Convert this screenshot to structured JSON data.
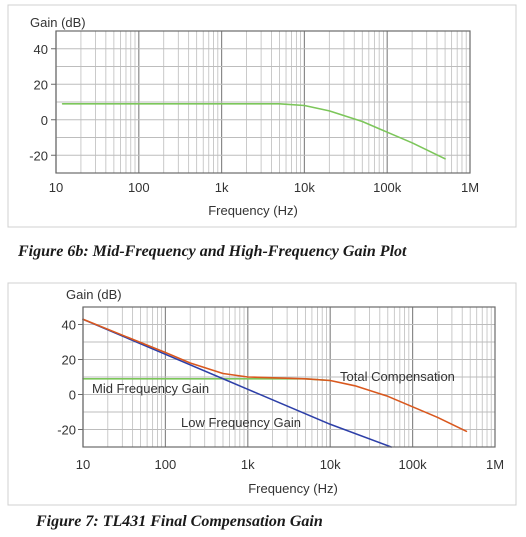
{
  "colors": {
    "green": "#7cc65a",
    "blue": "#2d3fa8",
    "red": "#d9581e",
    "orange": "#e0701c",
    "grid": "#bdbdbd",
    "frame": "#6a6a6a"
  },
  "chart_data": [
    {
      "type": "line",
      "title": "Figure 6b:  Mid-Frequency and High-Frequency Gain Plot",
      "xlabel": "Frequency (Hz)",
      "ylabel": "Gain (dB)",
      "xscale": "log",
      "xlim": [
        10,
        1000000
      ],
      "ylim": [
        -30,
        50
      ],
      "xticks": [
        "10",
        "100",
        "1k",
        "10k",
        "100k",
        "1M"
      ],
      "yticks": [
        "40",
        "20",
        "0",
        "-20"
      ],
      "grid": true,
      "series": [
        {
          "color": "#7cc65a",
          "x": [
            12,
            100,
            1000,
            5000,
            10000,
            20000,
            50000,
            100000,
            200000,
            500000
          ],
          "y": [
            9,
            9,
            9,
            9,
            8,
            5,
            -1,
            -7,
            -13,
            -22
          ]
        }
      ]
    },
    {
      "type": "line",
      "title": "Figure 7:  TL431 Final Compensation Gain",
      "xlabel": "Frequency (Hz)",
      "ylabel": "Gain (dB)",
      "xscale": "log",
      "xlim": [
        10,
        1000000
      ],
      "ylim": [
        -30,
        50
      ],
      "xticks": [
        "10",
        "100",
        "1k",
        "10k",
        "100k",
        "1M"
      ],
      "yticks": [
        "40",
        "20",
        "0",
        "-20"
      ],
      "grid": true,
      "annotations": [
        "Mid Frequency Gain",
        "Low Frequency Gain",
        "Total Compensation"
      ],
      "series": [
        {
          "name": "Mid Frequency Gain",
          "color": "#7cc65a",
          "x": [
            10,
            100,
            1000,
            5000,
            10000
          ],
          "y": [
            9,
            9,
            9,
            9,
            8
          ]
        },
        {
          "name": "Low Frequency Gain",
          "color": "#2d3fa8",
          "x": [
            10,
            100,
            1000,
            10000,
            55000
          ],
          "y": [
            43,
            23,
            3,
            -17,
            -30
          ]
        },
        {
          "name": "Total Compensation",
          "color": "#d9581e",
          "x": [
            10,
            100,
            200,
            500,
            1000,
            5000,
            10000,
            20000,
            50000,
            100000,
            200000,
            450000
          ],
          "y": [
            43,
            24,
            18,
            12,
            10,
            9,
            8,
            5,
            -1,
            -7,
            -13,
            -21
          ]
        }
      ]
    }
  ]
}
